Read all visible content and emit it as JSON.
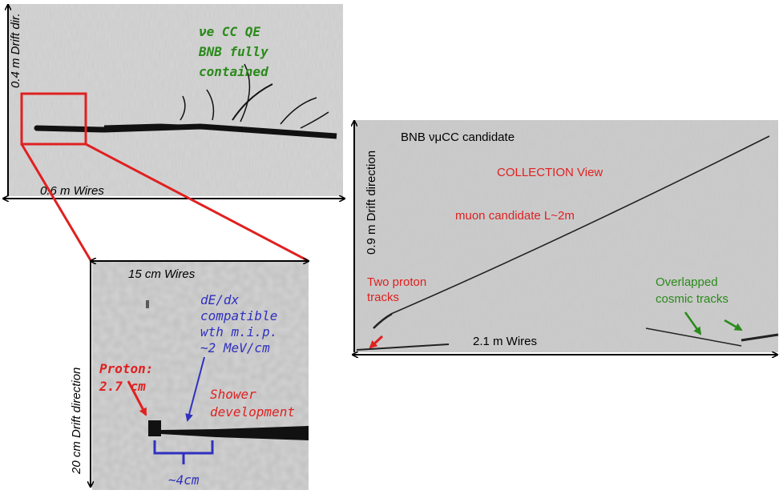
{
  "panel_top_left": {
    "drift_label": "0.4 m  Drift dir.",
    "wires_label": "0.6 m   Wires",
    "annotation": [
      "νe CC QE",
      "BNB  fully",
      "contained"
    ]
  },
  "panel_zoom": {
    "wires_label": "15 cm   Wires",
    "drift_label": "20 cm Drift direction",
    "dedx_note": [
      "dE/dx",
      "compatible",
      "wth m.i.p.",
      "~2 MeV/cm"
    ],
    "proton_note": [
      "Proton:",
      "2.7 cm"
    ],
    "shower_note": [
      "Shower",
      "development"
    ],
    "length_note": "~4cm"
  },
  "panel_right": {
    "title": "BNB νμCC candidate",
    "view": "COLLECTION View",
    "muon_note": "muon candidate L~2m",
    "drift_label": "0.9 m Drift direction",
    "proton_note": [
      "Two proton",
      "tracks"
    ],
    "cosmic_note": [
      "Overlapped",
      "cosmic tracks"
    ],
    "wires_label": "2.1 m   Wires"
  }
}
